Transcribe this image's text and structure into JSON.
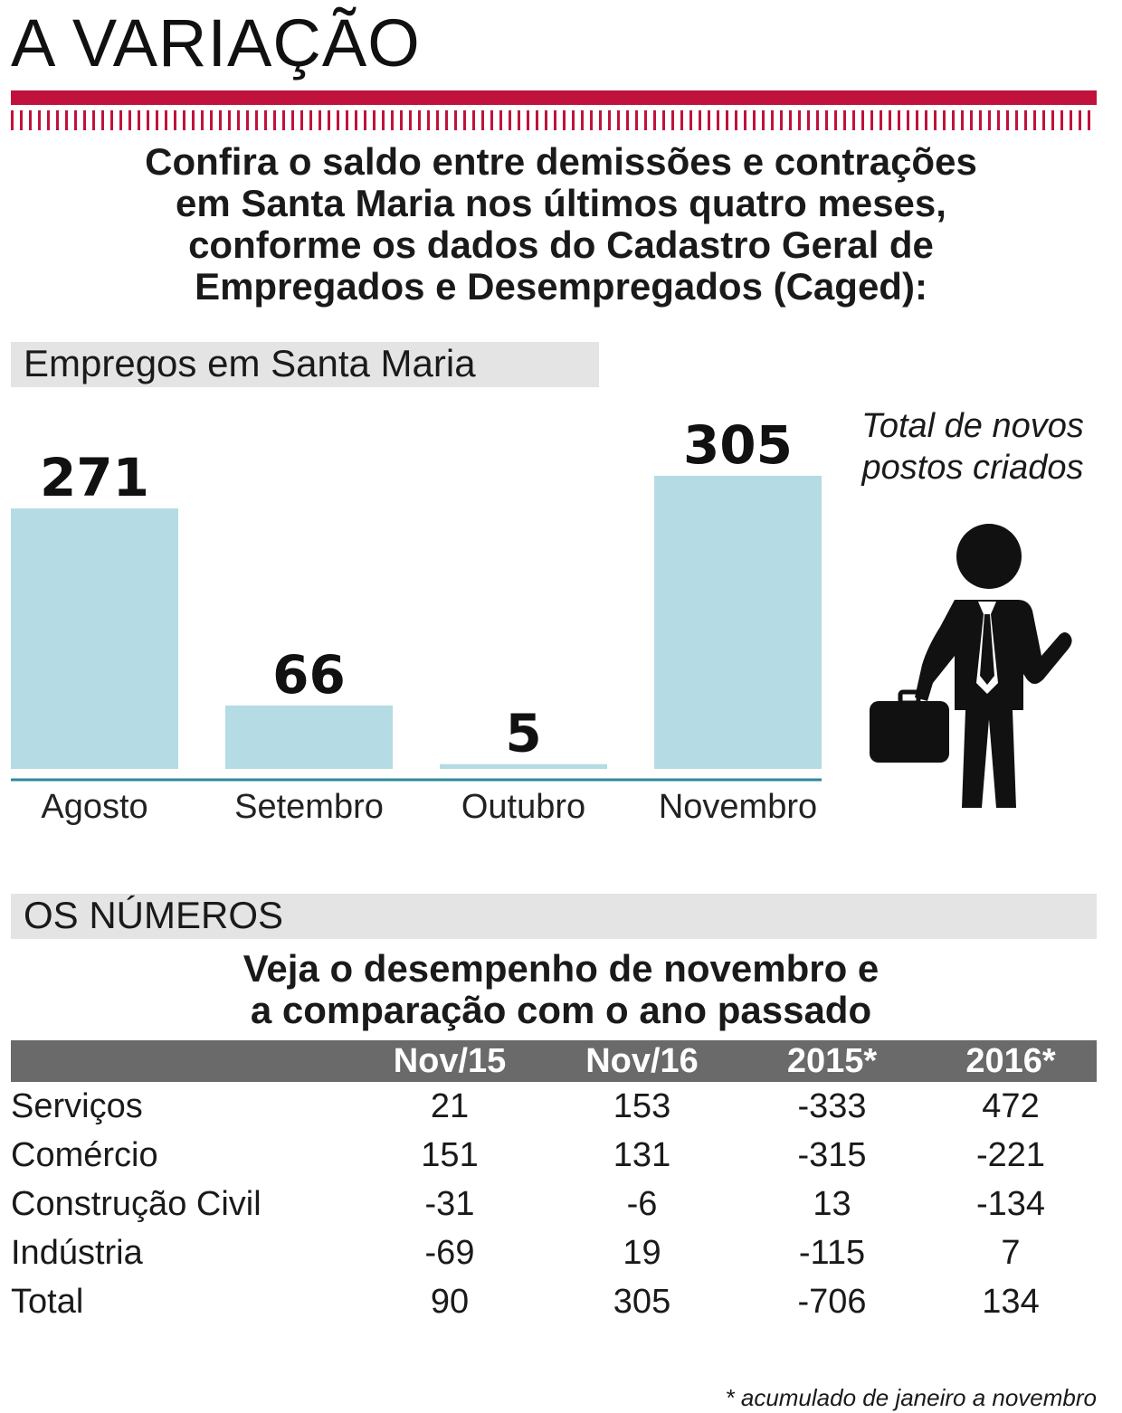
{
  "title": "A VARIAÇÃO",
  "colors": {
    "accent": "#c0123c",
    "bar": "#b5dbe4",
    "baseline": "#2e8a99"
  },
  "intro_lines": [
    "Confira o saldo entre demissões e contrações",
    "em Santa Maria nos últimos quatro meses,",
    "conforme os dados do Cadastro Geral de",
    "Empregados e Desempregados (Caged):"
  ],
  "chart_header": "Empregos em Santa Maria",
  "chart_data": {
    "type": "bar",
    "title": "Empregos em Santa Maria",
    "categories": [
      "Agosto",
      "Setembro",
      "Outubro",
      "Novembro"
    ],
    "values": [
      271,
      66,
      5,
      305
    ],
    "xlabel": "",
    "ylabel": "",
    "ylim": [
      0,
      320
    ],
    "grid": false,
    "legend": "none"
  },
  "total_caption_lines": [
    "Total de novos",
    "postos criados"
  ],
  "worker_icon": "businessman-with-briefcase-icon",
  "table_header": "OS NÚMEROS",
  "table_subtitle_lines": [
    "Veja o desempenho de novembro e",
    "a comparação com o ano passado"
  ],
  "table": {
    "columns": [
      "",
      "Nov/15",
      "Nov/16",
      "2015*",
      "2016*"
    ],
    "rows": [
      [
        "Serviços",
        "21",
        "153",
        "-333",
        "472"
      ],
      [
        "Comércio",
        "151",
        "131",
        "-315",
        "-221"
      ],
      [
        "Construção Civil",
        "-31",
        "-6",
        "13",
        "-134"
      ],
      [
        "Indústria",
        "-69",
        "19",
        "-115",
        "7"
      ],
      [
        "Total",
        "90",
        "305",
        "-706",
        "134"
      ]
    ]
  },
  "footnote": "* acumulado de janeiro a novembro"
}
